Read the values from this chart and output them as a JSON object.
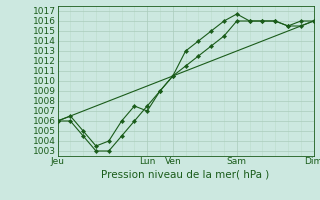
{
  "background_color": "#cce8e0",
  "grid_color_major": "#aaccbb",
  "grid_color_minor": "#bbddcc",
  "line_color": "#1a5c1a",
  "marker_color": "#1a5c1a",
  "ylabel_values": [
    1003,
    1004,
    1005,
    1006,
    1007,
    1008,
    1009,
    1010,
    1011,
    1012,
    1013,
    1014,
    1015,
    1016,
    1017
  ],
  "ylim": [
    1002.5,
    1017.5
  ],
  "xlabel": "Pression niveau de la mer( hPa )",
  "xlabel_fontsize": 7.5,
  "tick_label_fontsize": 6.5,
  "day_labels": [
    "Jeu",
    "Lun",
    "Ven",
    "Sam",
    "Dim"
  ],
  "day_positions": [
    0,
    3.5,
    4.5,
    7.0,
    10.0
  ],
  "series1_x": [
    0,
    0.5,
    1.0,
    1.5,
    2.0,
    2.5,
    3.0,
    3.5,
    4.0,
    4.5,
    5.0,
    5.5,
    6.0,
    6.5,
    7.0,
    7.5,
    8.0,
    8.5,
    9.0,
    9.5,
    10.0
  ],
  "series1_y": [
    1006,
    1006,
    1004.5,
    1003,
    1003,
    1004.5,
    1006,
    1007.5,
    1009,
    1010.5,
    1011.5,
    1012.5,
    1013.5,
    1014.5,
    1016,
    1016,
    1016,
    1016,
    1015.5,
    1015.5,
    1016
  ],
  "series2_x": [
    0,
    0.5,
    1.0,
    1.5,
    2.0,
    2.5,
    3.0,
    3.5,
    4.0,
    4.5,
    5.0,
    5.5,
    6.0,
    6.5,
    7.0,
    7.5,
    8.0,
    8.5,
    9.0,
    9.5,
    10.0
  ],
  "series2_y": [
    1006,
    1006.5,
    1005,
    1003.5,
    1004,
    1006,
    1007.5,
    1007,
    1009,
    1010.5,
    1013,
    1014,
    1015,
    1016,
    1016.7,
    1016,
    1016,
    1016,
    1015.5,
    1016,
    1016
  ],
  "series3_x": [
    0,
    10.0
  ],
  "series3_y": [
    1006,
    1016
  ],
  "xlim": [
    0,
    10.0
  ]
}
